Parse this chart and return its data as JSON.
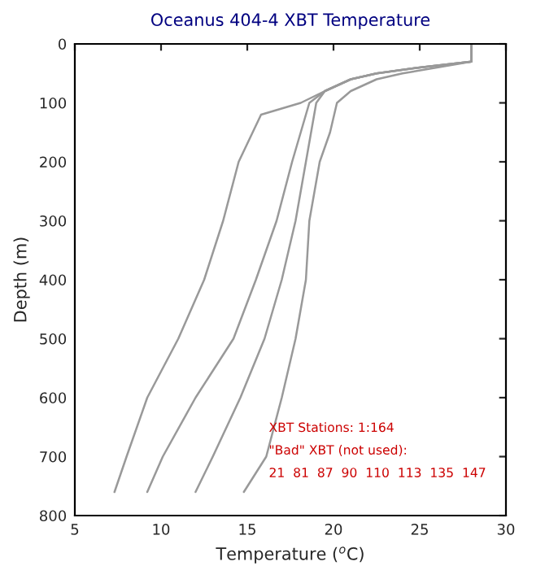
{
  "chart_data": {
    "type": "line",
    "title": "Oceanus 404-4 XBT Temperature",
    "xlabel": "Temperature ($^{o}$C)",
    "ylabel": "Depth (m)",
    "xlim": [
      5,
      30
    ],
    "xticks": [
      5,
      10,
      15,
      20,
      25,
      30
    ],
    "ylim": [
      800,
      0
    ],
    "yticks": [
      0,
      100,
      200,
      300,
      400,
      500,
      600,
      700,
      800
    ],
    "grid": false,
    "legend": false,
    "marker": "none",
    "line_style": "solid",
    "series": [
      {
        "color": "#999999",
        "x": [
          28,
          28,
          25,
          22.5,
          21,
          19.5,
          18.1,
          15.8,
          14.5,
          13.6,
          12.5,
          11.0,
          9.2,
          8.0,
          7.3
        ],
        "values": [
          0,
          30,
          40,
          50,
          60,
          80,
          100,
          120,
          200,
          300,
          400,
          500,
          600,
          700,
          760
        ]
      },
      {
        "color": "#999999",
        "x": [
          28,
          28,
          25,
          22.5,
          21,
          19.5,
          18.6,
          18.1,
          17.6,
          16.7,
          15.5,
          14.2,
          12.0,
          10.1,
          9.2
        ],
        "values": [
          0,
          30,
          40,
          50,
          60,
          80,
          100,
          150,
          200,
          300,
          400,
          500,
          600,
          700,
          760
        ]
      },
      {
        "color": "#999999",
        "x": [
          28,
          28,
          25,
          22.5,
          21,
          19.5,
          19.0,
          18.7,
          18.4,
          17.8,
          17.0,
          16.0,
          14.6,
          13.0,
          12.0
        ],
        "values": [
          0,
          30,
          40,
          50,
          60,
          80,
          100,
          150,
          200,
          300,
          400,
          500,
          600,
          700,
          760
        ]
      },
      {
        "color": "#999999",
        "x": [
          28,
          28,
          26,
          24,
          22.5,
          21,
          20.2,
          19.8,
          19.2,
          18.6,
          18.4,
          17.8,
          17.0,
          16.1,
          14.8
        ],
        "values": [
          0,
          30,
          40,
          50,
          60,
          80,
          100,
          150,
          200,
          300,
          400,
          500,
          600,
          700,
          760
        ]
      }
    ],
    "annotations": [
      "XBT Stations: 1:164",
      "\"Bad\" XBT (not used):",
      "21  81  87  90  110  113  135  147"
    ]
  }
}
